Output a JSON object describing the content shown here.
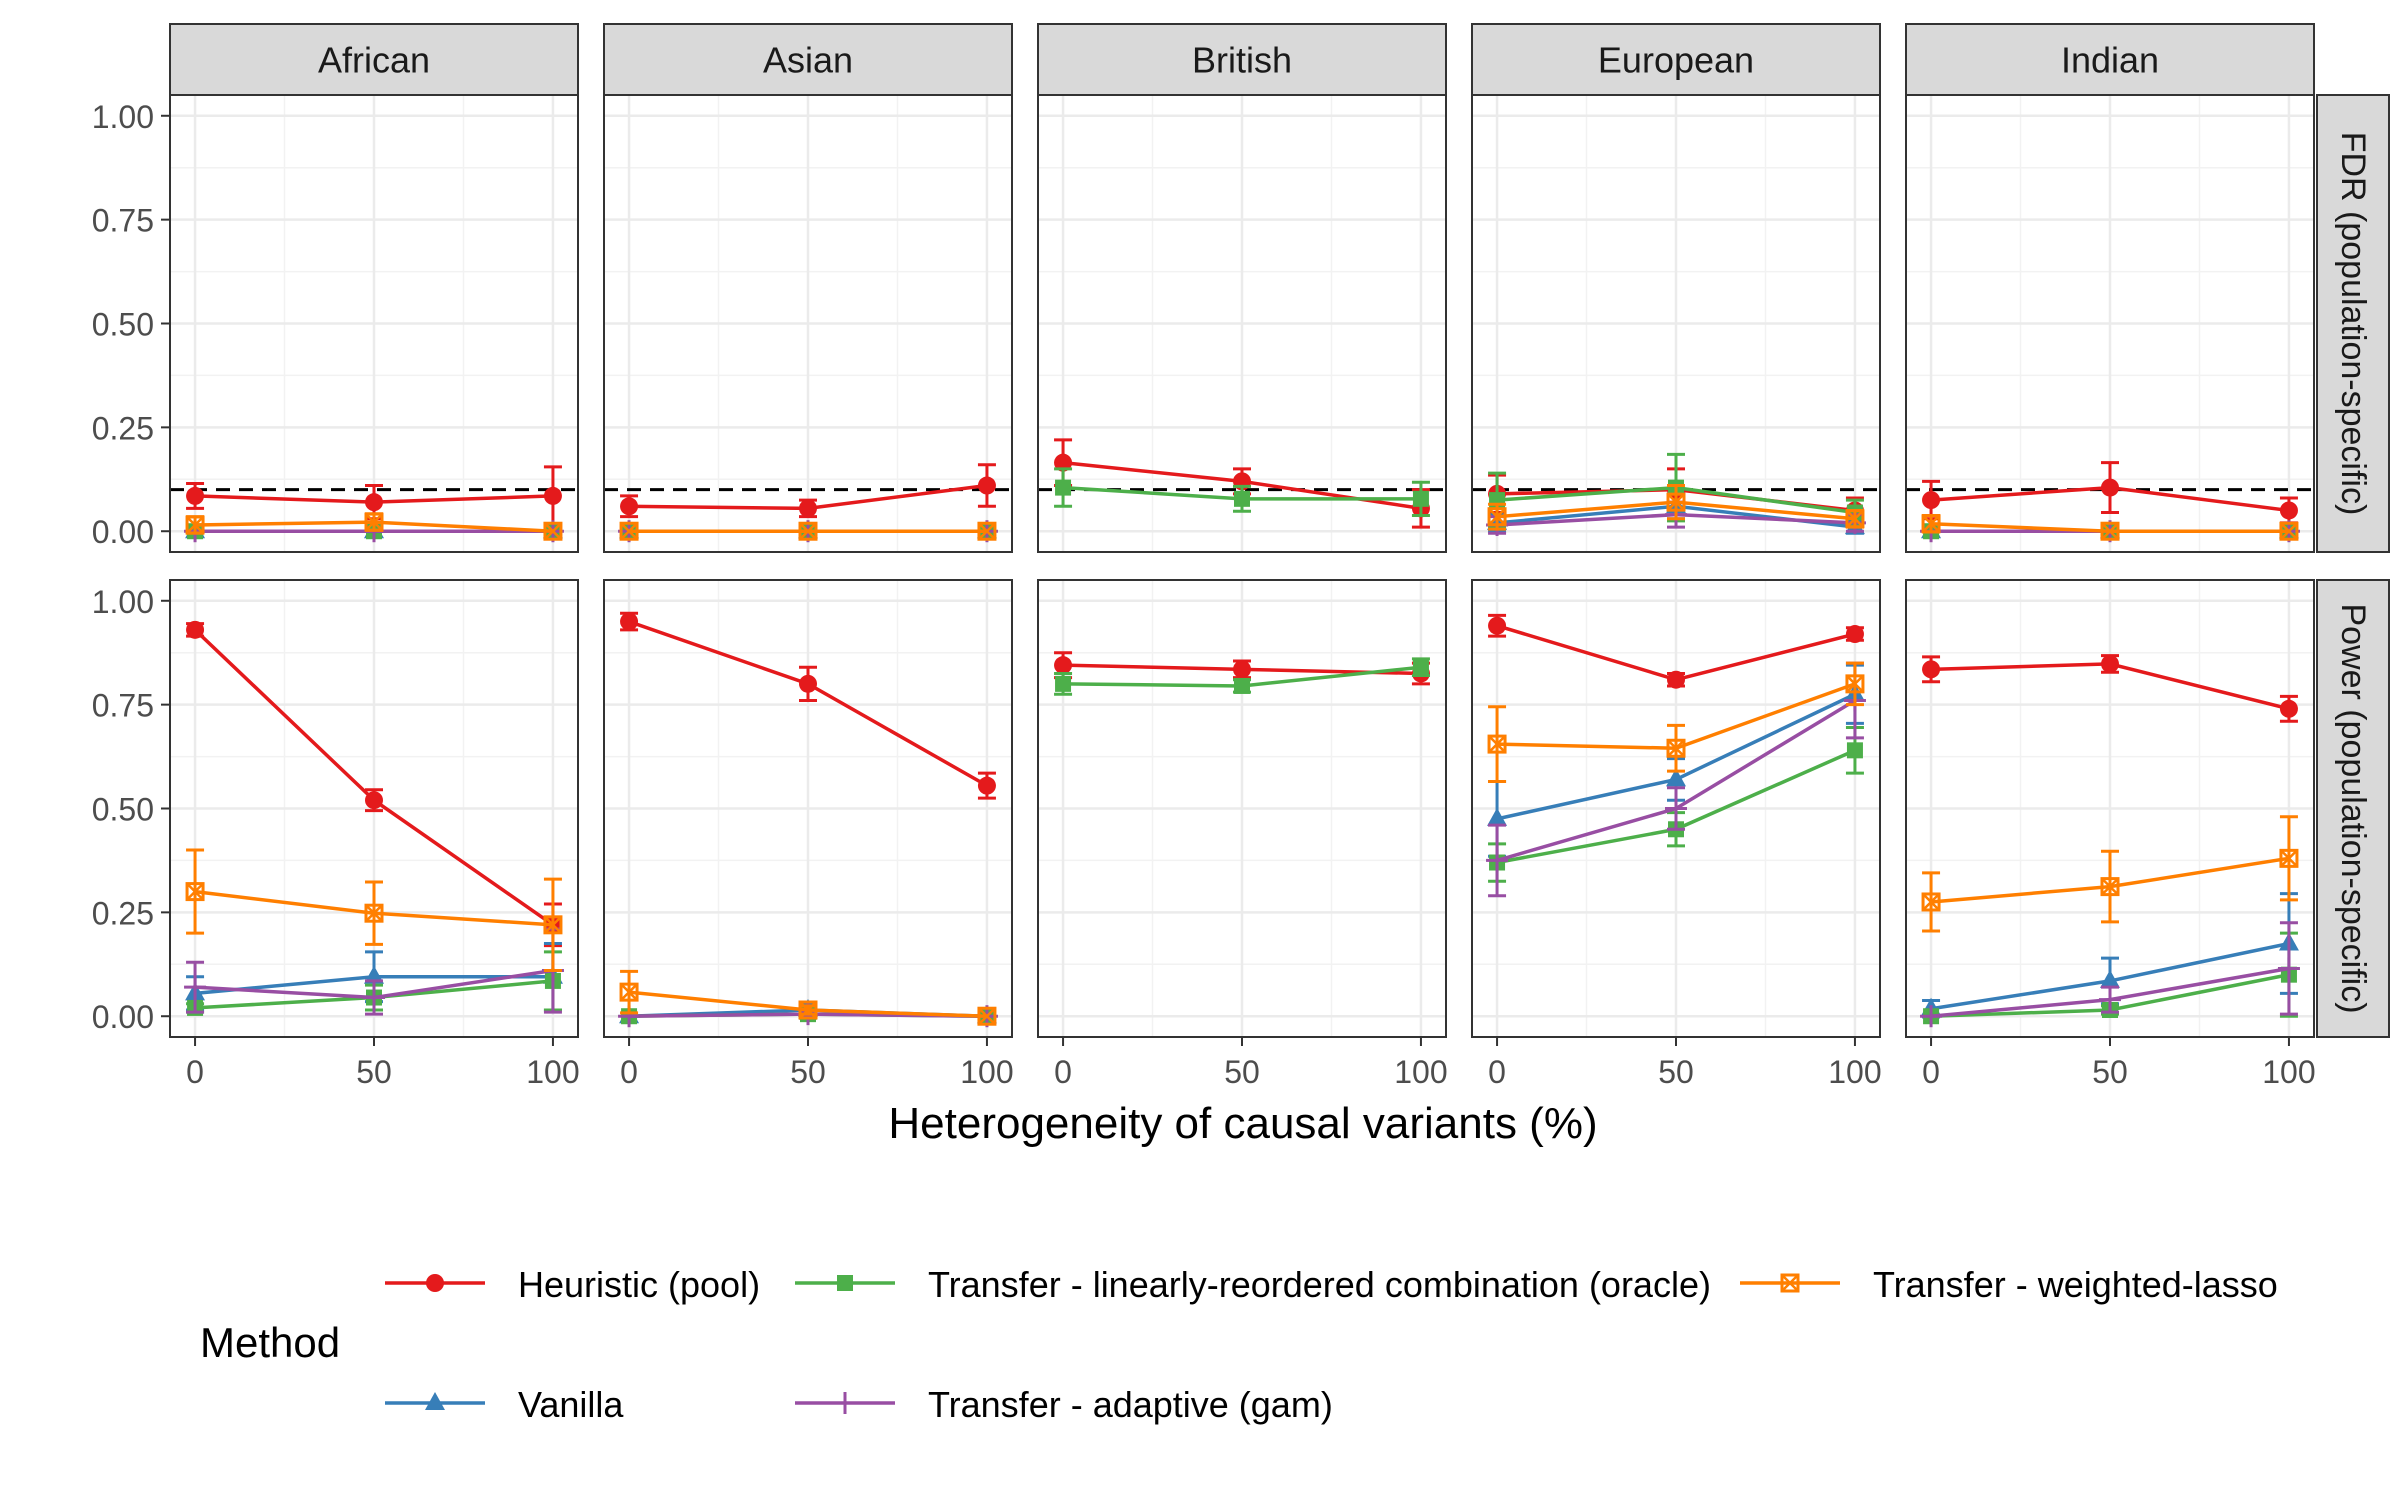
{
  "chart_data": {
    "type": "line",
    "facet_columns": [
      "African",
      "Asian",
      "British",
      "European",
      "Indian"
    ],
    "facet_rows": [
      "FDR (population-specific)",
      "Power (population-specific)"
    ],
    "x": [
      0,
      50,
      100
    ],
    "x_ticks": [
      "0",
      "50",
      "100"
    ],
    "y_ticks": [
      "0.00",
      "0.25",
      "0.50",
      "0.75",
      "1.00"
    ],
    "ylim": [
      -0.05,
      1.05
    ],
    "xlim": [
      -7,
      107
    ],
    "xlabel": "Heterogeneity of causal variants (%)",
    "fdr_target": 0.1,
    "legend_title": "Method",
    "methods": [
      {
        "key": "heuristic",
        "name": "Heuristic (pool)",
        "color": "#e41a1c",
        "marker": "circle"
      },
      {
        "key": "vanilla",
        "name": "Vanilla",
        "color": "#377eb8",
        "marker": "triangle"
      },
      {
        "key": "oracle",
        "name": "Transfer - linearly-reordered combination (oracle)",
        "color": "#4daf4a",
        "marker": "square"
      },
      {
        "key": "gam",
        "name": "Transfer - adaptive (gam)",
        "color": "#984ea3",
        "marker": "plus"
      },
      {
        "key": "wlasso",
        "name": "Transfer - weighted-lasso",
        "color": "#ff7f00",
        "marker": "boxcross"
      }
    ],
    "series": {
      "FDR (population-specific)": {
        "African": {
          "heuristic": [
            [
              0.085,
              0.03
            ],
            [
              0.07,
              0.04
            ],
            [
              0.085,
              0.07
            ]
          ],
          "vanilla": [
            [
              0,
              0
            ],
            [
              0,
              0
            ],
            [
              0,
              0
            ]
          ],
          "oracle": [
            [
              0,
              0
            ],
            [
              0,
              0
            ],
            [
              0,
              0
            ]
          ],
          "gam": [
            [
              0,
              0
            ],
            [
              0,
              0
            ],
            [
              0,
              0
            ]
          ],
          "wlasso": [
            [
              0.015,
              0.02
            ],
            [
              0.022,
              0.02
            ],
            [
              0,
              0
            ]
          ]
        },
        "Asian": {
          "heuristic": [
            [
              0.06,
              0.025
            ],
            [
              0.055,
              0.02
            ],
            [
              0.11,
              0.05
            ]
          ],
          "vanilla": [
            [
              0,
              0
            ],
            [
              0,
              0
            ],
            [
              0,
              0
            ]
          ],
          "oracle": [
            [
              0,
              0
            ],
            [
              0,
              0
            ],
            [
              0,
              0
            ]
          ],
          "gam": [
            [
              0,
              0
            ],
            [
              0,
              0
            ],
            [
              0,
              0
            ]
          ],
          "wlasso": [
            [
              0,
              0
            ],
            [
              0,
              0
            ],
            [
              0,
              0
            ]
          ]
        },
        "British": {
          "heuristic": [
            [
              0.165,
              0.055
            ],
            [
              0.12,
              0.03
            ],
            [
              0.055,
              0.045
            ]
          ],
          "vanilla": [],
          "oracle": [
            [
              0.105,
              0.045
            ],
            [
              0.078,
              0.03
            ],
            [
              0.078,
              0.04
            ]
          ],
          "gam": [],
          "wlasso": []
        },
        "European": {
          "heuristic": [
            [
              0.09,
              0.045
            ],
            [
              0.1,
              0.05
            ],
            [
              0.05,
              0.03
            ]
          ],
          "vanilla": [
            [
              0.02,
              0.02
            ],
            [
              0.06,
              0.03
            ],
            [
              0.01,
              0.015
            ]
          ],
          "oracle": [
            [
              0.075,
              0.065
            ],
            [
              0.105,
              0.08
            ],
            [
              0.045,
              0.03
            ]
          ],
          "gam": [
            [
              0.015,
              0.02
            ],
            [
              0.04,
              0.03
            ],
            [
              0.02,
              0.02
            ]
          ],
          "wlasso": [
            [
              0.035,
              0.03
            ],
            [
              0.07,
              0.04
            ],
            [
              0.03,
              0.02
            ]
          ]
        },
        "Indian": {
          "heuristic": [
            [
              0.075,
              0.045
            ],
            [
              0.105,
              0.06
            ],
            [
              0.05,
              0.03
            ]
          ],
          "vanilla": [
            [
              0,
              0
            ],
            [
              0,
              0
            ],
            [
              0,
              0
            ]
          ],
          "oracle": [
            [
              0,
              0
            ],
            [
              0,
              0
            ],
            [
              0,
              0
            ]
          ],
          "gam": [
            [
              0,
              0
            ],
            [
              0,
              0
            ],
            [
              0,
              0
            ]
          ],
          "wlasso": [
            [
              0.018,
              0.02
            ],
            [
              0,
              0
            ],
            [
              0,
              0
            ]
          ]
        }
      },
      "Power (population-specific)": {
        "African": {
          "heuristic": [
            [
              0.93,
              0.015
            ],
            [
              0.52,
              0.025
            ],
            [
              0.22,
              0.05
            ]
          ],
          "vanilla": [
            [
              0.055,
              0.04
            ],
            [
              0.095,
              0.06
            ],
            [
              0.095,
              0.08
            ]
          ],
          "oracle": [
            [
              0.02,
              0.01
            ],
            [
              0.045,
              0.03
            ],
            [
              0.085,
              0.07
            ]
          ],
          "gam": [
            [
              0.07,
              0.06
            ],
            [
              0.045,
              0.04
            ],
            [
              0.11,
              0.1
            ]
          ],
          "wlasso": [
            [
              0.3,
              0.1
            ],
            [
              0.248,
              0.075
            ],
            [
              0.22,
              0.11
            ]
          ]
        },
        "Asian": {
          "heuristic": [
            [
              0.95,
              0.02
            ],
            [
              0.8,
              0.04
            ],
            [
              0.555,
              0.03
            ]
          ],
          "vanilla": [
            [
              0,
              0
            ],
            [
              0.015,
              0.015
            ],
            [
              0,
              0
            ]
          ],
          "oracle": [
            [
              0,
              0
            ],
            [
              0.005,
              0.01
            ],
            [
              0,
              0
            ]
          ],
          "gam": [
            [
              0,
              0
            ],
            [
              0.005,
              0.005
            ],
            [
              0,
              0
            ]
          ],
          "wlasso": [
            [
              0.058,
              0.05
            ],
            [
              0.015,
              0.01
            ],
            [
              0,
              0
            ]
          ]
        },
        "British": {
          "heuristic": [
            [
              0.845,
              0.03
            ],
            [
              0.835,
              0.02
            ],
            [
              0.825,
              0.025
            ]
          ],
          "vanilla": [],
          "oracle": [
            [
              0.8,
              0.025
            ],
            [
              0.795,
              0.015
            ],
            [
              0.84,
              0.02
            ]
          ],
          "gam": [],
          "wlasso": []
        },
        "European": {
          "heuristic": [
            [
              0.94,
              0.025
            ],
            [
              0.81,
              0.015
            ],
            [
              0.92,
              0.015
            ]
          ],
          "vanilla": [
            [
              0.475,
              0.09
            ],
            [
              0.57,
              0.05
            ],
            [
              0.775,
              0.07
            ]
          ],
          "oracle": [
            [
              0.37,
              0.045
            ],
            [
              0.45,
              0.04
            ],
            [
              0.64,
              0.055
            ]
          ],
          "gam": [
            [
              0.375,
              0.085
            ],
            [
              0.5,
              0.05
            ],
            [
              0.76,
              0.09
            ]
          ],
          "wlasso": [
            [
              0.655,
              0.09
            ],
            [
              0.645,
              0.055
            ],
            [
              0.8,
              0.05
            ]
          ]
        },
        "Indian": {
          "heuristic": [
            [
              0.835,
              0.03
            ],
            [
              0.848,
              0.02
            ],
            [
              0.74,
              0.03
            ]
          ],
          "vanilla": [
            [
              0.018,
              0.02
            ],
            [
              0.085,
              0.055
            ],
            [
              0.175,
              0.12
            ]
          ],
          "oracle": [
            [
              0,
              0
            ],
            [
              0.015,
              0.01
            ],
            [
              0.1,
              0.1
            ]
          ],
          "gam": [
            [
              0,
              0
            ],
            [
              0.04,
              0.03
            ],
            [
              0.115,
              0.11
            ]
          ],
          "wlasso": [
            [
              0.275,
              0.07
            ],
            [
              0.312,
              0.085
            ],
            [
              0.38,
              0.1
            ]
          ]
        }
      }
    }
  }
}
